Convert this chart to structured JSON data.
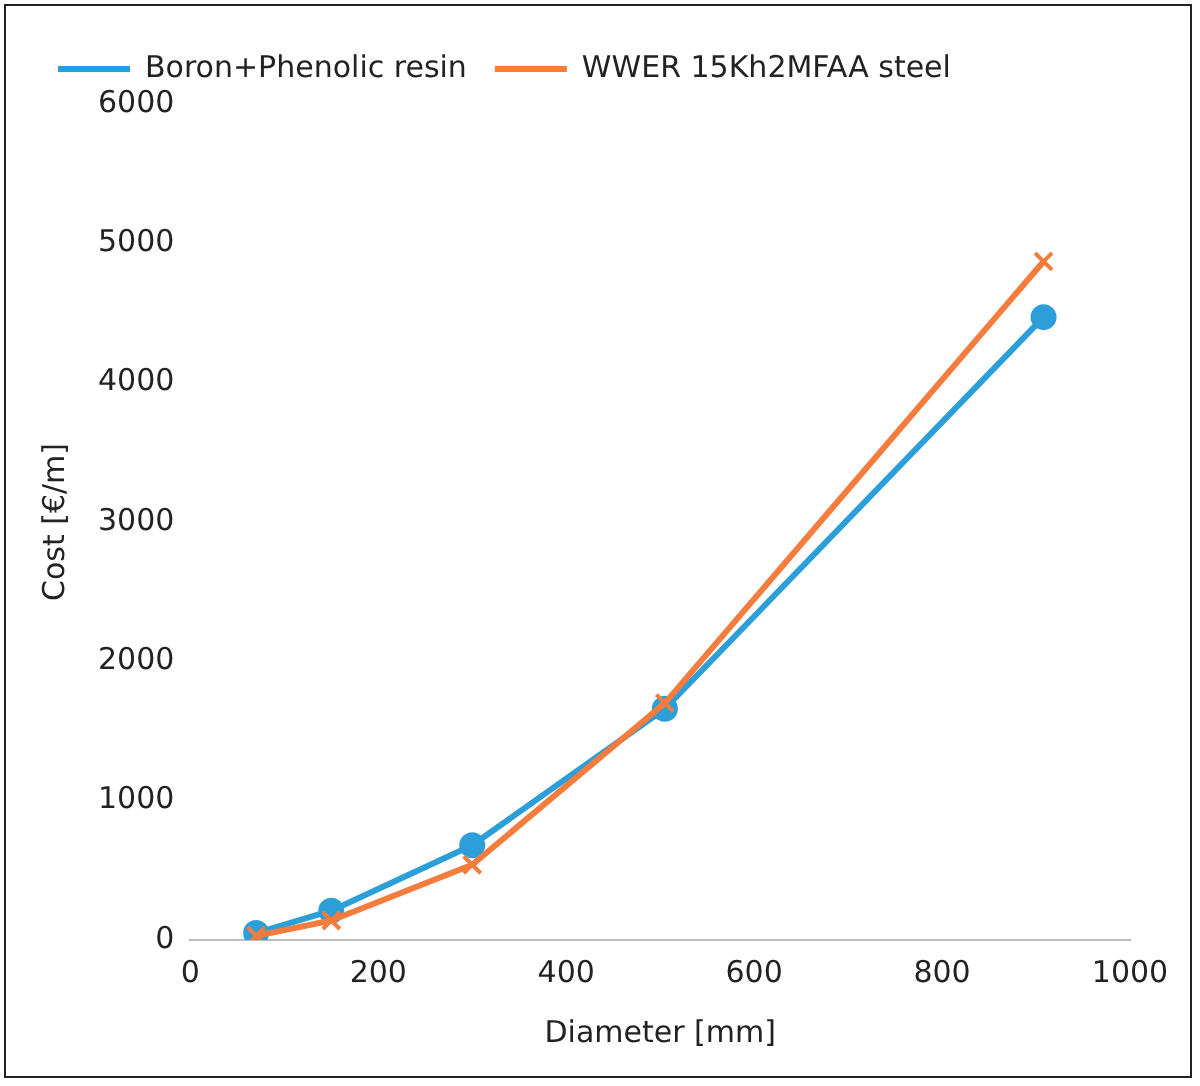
{
  "chart_data": {
    "type": "line",
    "xlabel": "Diameter [mm]",
    "ylabel": "Cost [€/m]",
    "xlim": [
      0,
      1000
    ],
    "xticks": [
      0,
      200,
      400,
      600,
      800,
      1000
    ],
    "ylim": [
      0,
      6000
    ],
    "yticks": [
      0,
      1000,
      2000,
      3000,
      4000,
      5000,
      6000
    ],
    "grid": false,
    "legend": "top left",
    "line_style": "solid",
    "series": [
      {
        "name": "Boron+Phenolic resin",
        "color": "#2c9fd9",
        "marker": "circle",
        "x": [
          70,
          150,
          300,
          505,
          908
        ],
        "values": [
          50,
          210,
          680,
          1660,
          4470
        ]
      },
      {
        "name": "WWER 15Kh2MFAA steel",
        "color": "#f47c3c",
        "marker": "cross",
        "x": [
          70,
          150,
          300,
          505,
          908
        ],
        "values": [
          30,
          140,
          540,
          1700,
          4870
        ]
      }
    ]
  }
}
